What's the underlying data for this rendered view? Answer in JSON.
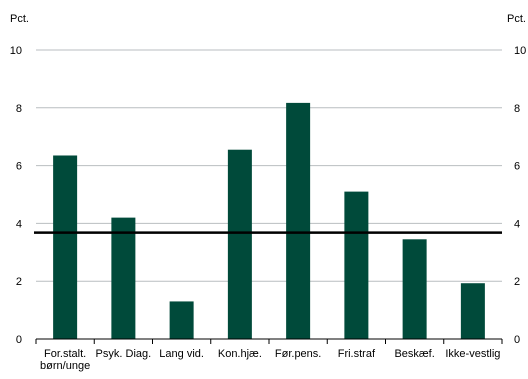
{
  "chart_data": {
    "type": "bar",
    "title": "",
    "xlabel": "",
    "ylabel_left": "Pct.",
    "ylabel_right": "Pct.",
    "ylim": [
      0,
      10
    ],
    "yticks": [
      0,
      2,
      4,
      6,
      8,
      10
    ],
    "grid": true,
    "legend": "none",
    "categories": [
      [
        "For.stalt.",
        "børn/unge"
      ],
      [
        "Psyk. Diag."
      ],
      [
        "Lang vid."
      ],
      [
        "Kon.hjæ."
      ],
      [
        "Før.pens."
      ],
      [
        "Fri.straf"
      ],
      [
        "Beskæf."
      ],
      [
        "Ikke-vestlig"
      ]
    ],
    "series": [
      {
        "values": [
          6.35,
          4.2,
          1.3,
          6.55,
          8.17,
          5.1,
          3.45,
          1.93
        ]
      }
    ],
    "reference_line": {
      "value": 3.68
    },
    "colors": {
      "bar": "#004a3a",
      "reference_line": "#000000",
      "grid": "#b9bec0",
      "axis": "#000000"
    }
  }
}
